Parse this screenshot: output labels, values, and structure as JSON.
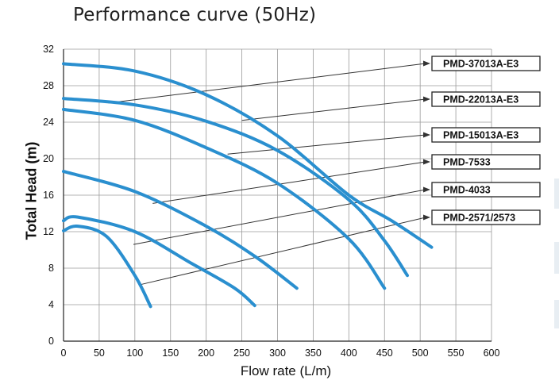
{
  "title": "Performance curve  (50Hz)",
  "colors": {
    "curve": "#2a8fcf",
    "grid": "#9a9a9a",
    "leader": "#333333"
  },
  "chart_data": {
    "type": "line",
    "title": "Performance curve  (50Hz)",
    "xlabel": "Flow rate (L/m)",
    "ylabel": "Total Head (m)",
    "xlim": [
      0,
      600
    ],
    "ylim": [
      0,
      32
    ],
    "x_ticks": [
      0,
      50,
      100,
      150,
      200,
      250,
      300,
      350,
      400,
      450,
      500,
      550,
      600
    ],
    "y_ticks": [
      0,
      4,
      8,
      12,
      16,
      20,
      24,
      28,
      32
    ],
    "grid": true,
    "series": [
      {
        "name": "PMD-37013A-E3",
        "points": [
          [
            0,
            30.4
          ],
          [
            100,
            29.6
          ],
          [
            200,
            27.0
          ],
          [
            300,
            22.5
          ],
          [
            400,
            16.0
          ],
          [
            460,
            13.2
          ],
          [
            516,
            10.3
          ]
        ]
      },
      {
        "name": "PMD-22013A-E3",
        "points": [
          [
            0,
            26.6
          ],
          [
            100,
            25.9
          ],
          [
            200,
            24.1
          ],
          [
            300,
            20.9
          ],
          [
            400,
            15.5
          ],
          [
            450,
            11.0
          ],
          [
            482,
            7.2
          ]
        ]
      },
      {
        "name": "PMD-15013A-E3",
        "points": [
          [
            0,
            25.4
          ],
          [
            100,
            24.2
          ],
          [
            200,
            21.2
          ],
          [
            300,
            17.3
          ],
          [
            400,
            11.2
          ],
          [
            450,
            5.8
          ]
        ]
      },
      {
        "name": "PMD-7533",
        "points": [
          [
            0,
            18.6
          ],
          [
            100,
            16.4
          ],
          [
            200,
            12.6
          ],
          [
            270,
            9.2
          ],
          [
            327,
            5.8
          ]
        ]
      },
      {
        "name": "PMD-4033",
        "points": [
          [
            0,
            13.2
          ],
          [
            20,
            13.6
          ],
          [
            100,
            12.0
          ],
          [
            180,
            8.5
          ],
          [
            240,
            5.8
          ],
          [
            268,
            3.9
          ]
        ]
      },
      {
        "name": "PMD-2571/2573",
        "points": [
          [
            0,
            12.1
          ],
          [
            20,
            12.6
          ],
          [
            60,
            11.5
          ],
          [
            100,
            7.2
          ],
          [
            122,
            3.8
          ]
        ]
      }
    ],
    "labels": [
      {
        "series": "PMD-37013A-E3",
        "anchor": [
          63,
          26.1
        ]
      },
      {
        "series": "PMD-22013A-E3",
        "anchor": [
          250,
          24.2
        ]
      },
      {
        "series": "PMD-15013A-E3",
        "anchor": [
          230,
          20.5
        ]
      },
      {
        "series": "PMD-7533",
        "anchor": [
          125,
          15.1
        ]
      },
      {
        "series": "PMD-4033",
        "anchor": [
          98,
          10.6
        ]
      },
      {
        "series": "PMD-2571/2573",
        "anchor": [
          108,
          6.2
        ]
      }
    ]
  }
}
